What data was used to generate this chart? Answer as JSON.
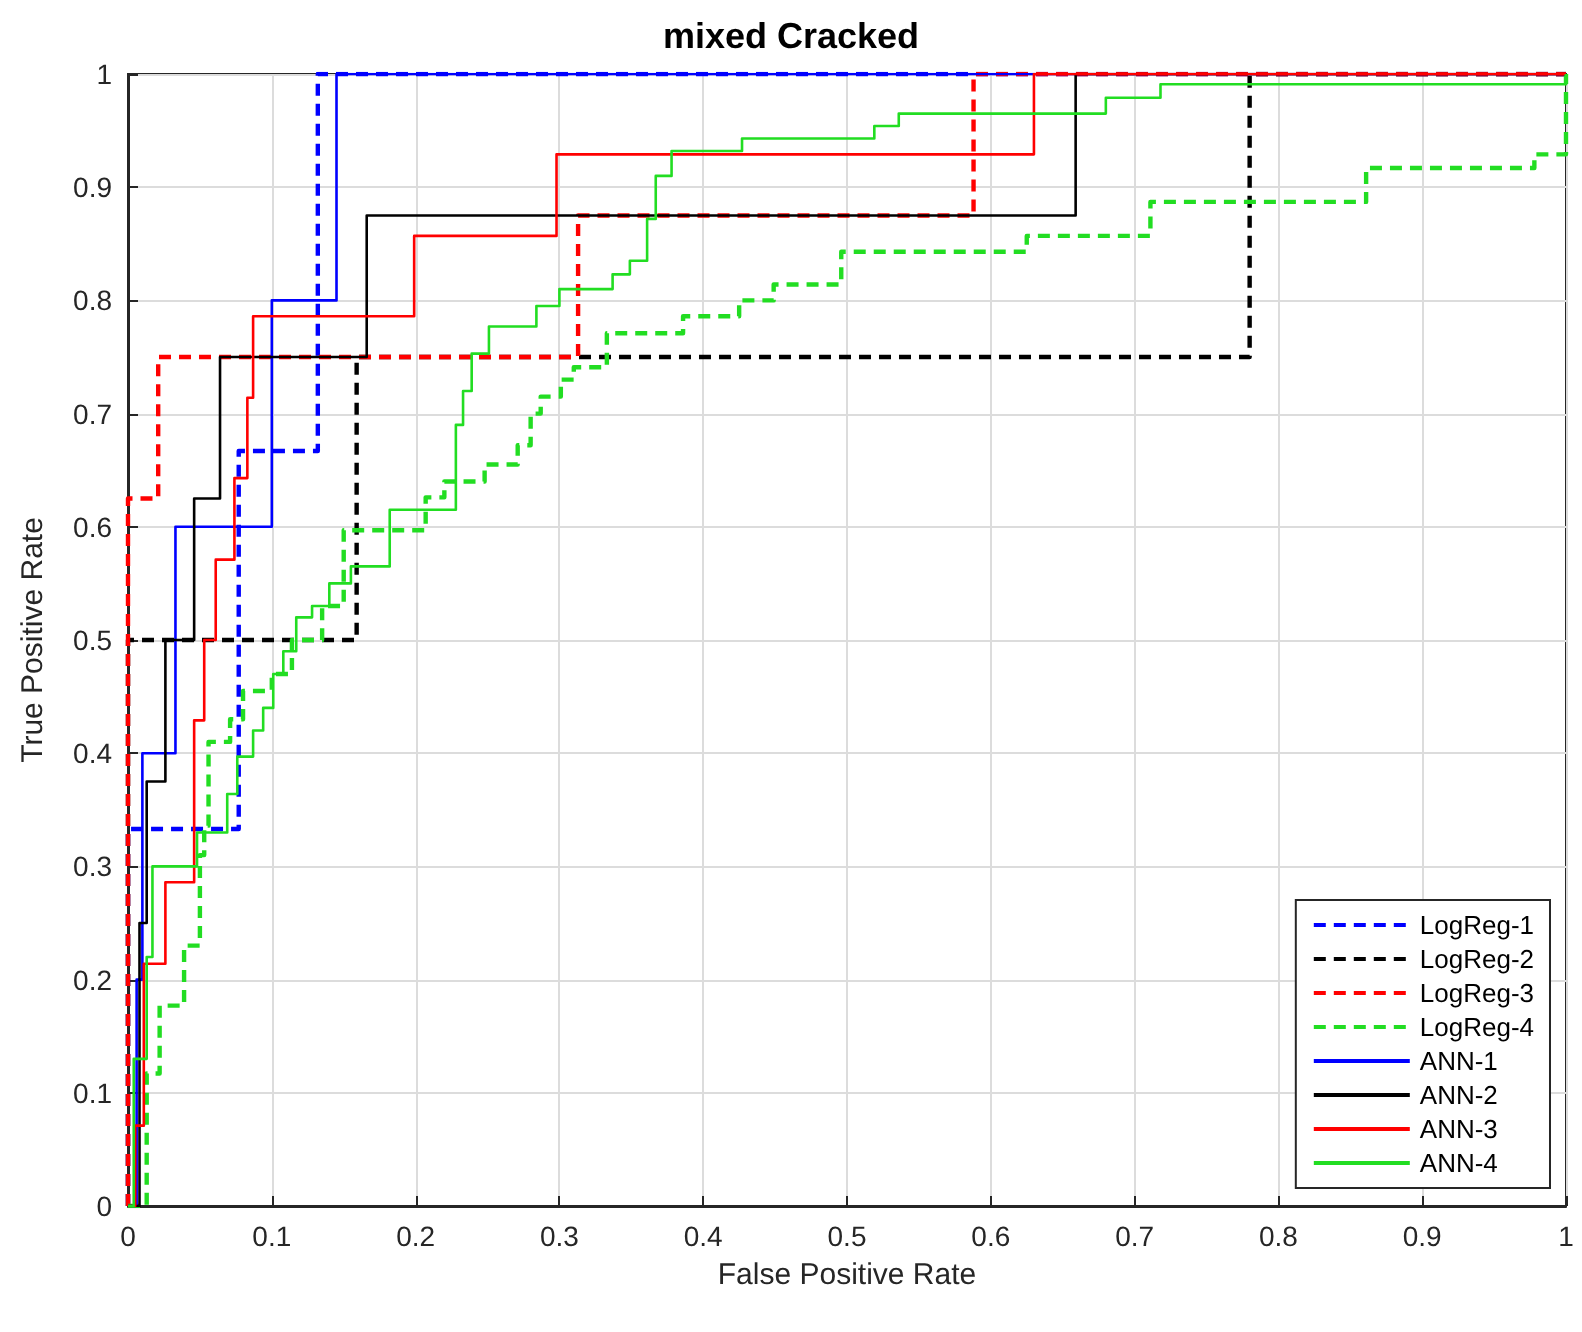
{
  "chart_data": {
    "type": "line",
    "title": "mixed Cracked",
    "xlabel": "False Positive Rate",
    "ylabel": "True Positive Rate",
    "xlim": [
      0,
      1
    ],
    "ylim": [
      0,
      1
    ],
    "xticks": [
      0,
      0.1,
      0.2,
      0.3,
      0.4,
      0.5,
      0.6,
      0.7,
      0.8,
      0.9,
      1
    ],
    "yticks": [
      0,
      0.1,
      0.2,
      0.3,
      0.4,
      0.5,
      0.6,
      0.7,
      0.8,
      0.9,
      1
    ],
    "grid": true,
    "legend": "bottom right",
    "marker": "none",
    "series": [
      {
        "name": "LogReg-1",
        "color": "#0000ff",
        "line_style": "dashed",
        "x": [
          0,
          0,
          0.077,
          0.077,
          0.132,
          0.132,
          1
        ],
        "values": [
          0,
          0.333,
          0.333,
          0.667,
          0.667,
          1,
          1
        ]
      },
      {
        "name": "LogReg-2",
        "color": "#000000",
        "line_style": "dashed",
        "x": [
          0,
          0,
          0.159,
          0.159,
          0.78,
          0.78,
          1
        ],
        "values": [
          0,
          0.5,
          0.5,
          0.75,
          0.75,
          1,
          1
        ]
      },
      {
        "name": "LogReg-3",
        "color": "#ff0000",
        "line_style": "dashed",
        "x": [
          0,
          0,
          0.021,
          0.021,
          0.313,
          0.313,
          0.588,
          0.588,
          1
        ],
        "values": [
          0,
          0.625,
          0.625,
          0.75,
          0.75,
          0.875,
          0.875,
          1,
          1
        ]
      },
      {
        "name": "LogReg-4",
        "color": "#22dd22",
        "line_style": "dashed",
        "x": [
          0,
          0.013,
          0.013,
          0.022,
          0.022,
          0.039,
          0.039,
          0.05,
          0.05,
          0.053,
          0.053,
          0.056,
          0.056,
          0.071,
          0.071,
          0.08,
          0.08,
          0.1,
          0.1,
          0.114,
          0.114,
          0.135,
          0.135,
          0.15,
          0.15,
          0.189,
          0.207,
          0.207,
          0.22,
          0.22,
          0.248,
          0.248,
          0.271,
          0.271,
          0.28,
          0.28,
          0.287,
          0.287,
          0.301,
          0.301,
          0.31,
          0.31,
          0.333,
          0.333,
          0.386,
          0.386,
          0.425,
          0.425,
          0.449,
          0.449,
          0.496,
          0.496,
          0.625,
          0.625,
          0.711,
          0.711,
          0.861,
          0.861,
          0.978,
          0.978,
          1,
          1
        ],
        "values": [
          0,
          0,
          0.117,
          0.117,
          0.177,
          0.177,
          0.23,
          0.23,
          0.31,
          0.31,
          0.336,
          0.336,
          0.41,
          0.41,
          0.43,
          0.43,
          0.455,
          0.455,
          0.47,
          0.47,
          0.5,
          0.5,
          0.53,
          0.53,
          0.597,
          0.597,
          0.597,
          0.626,
          0.626,
          0.64,
          0.64,
          0.655,
          0.655,
          0.672,
          0.672,
          0.7,
          0.7,
          0.715,
          0.715,
          0.73,
          0.73,
          0.741,
          0.741,
          0.771,
          0.771,
          0.786,
          0.786,
          0.8,
          0.8,
          0.814,
          0.814,
          0.843,
          0.843,
          0.857,
          0.857,
          0.887,
          0.887,
          0.917,
          0.917,
          0.929,
          0.929,
          1
        ]
      },
      {
        "name": "ANN-1",
        "color": "#0000ff",
        "line_style": "solid",
        "x": [
          0,
          0.006,
          0.006,
          0.01,
          0.01,
          0.033,
          0.033,
          0.1,
          0.1,
          0.145,
          0.145,
          1
        ],
        "values": [
          0,
          0,
          0.2,
          0.2,
          0.4,
          0.4,
          0.6,
          0.6,
          0.8,
          0.8,
          1,
          1
        ]
      },
      {
        "name": "ANN-2",
        "color": "#000000",
        "line_style": "solid",
        "x": [
          0,
          0.008,
          0.008,
          0.013,
          0.013,
          0.026,
          0.026,
          0.046,
          0.046,
          0.064,
          0.064,
          0.166,
          0.166,
          0.659,
          0.659,
          1
        ],
        "values": [
          0,
          0,
          0.25,
          0.25,
          0.375,
          0.375,
          0.5,
          0.5,
          0.625,
          0.625,
          0.75,
          0.75,
          0.875,
          0.875,
          1,
          1
        ]
      },
      {
        "name": "ANN-3",
        "color": "#ff0000",
        "line_style": "solid",
        "x": [
          0,
          0.005,
          0.005,
          0.011,
          0.011,
          0.026,
          0.026,
          0.046,
          0.046,
          0.053,
          0.053,
          0.061,
          0.061,
          0.074,
          0.074,
          0.083,
          0.083,
          0.087,
          0.087,
          0.199,
          0.199,
          0.298,
          0.298,
          0.63,
          0.63,
          1
        ],
        "values": [
          0,
          0,
          0.071,
          0.071,
          0.214,
          0.214,
          0.286,
          0.286,
          0.429,
          0.429,
          0.5,
          0.5,
          0.571,
          0.571,
          0.643,
          0.643,
          0.714,
          0.714,
          0.786,
          0.786,
          0.857,
          0.857,
          0.929,
          0.929,
          1,
          1
        ]
      },
      {
        "name": "ANN-4",
        "color": "#22dd22",
        "line_style": "solid",
        "x": [
          0,
          0.004,
          0.004,
          0.013,
          0.013,
          0.017,
          0.017,
          0.048,
          0.048,
          0.069,
          0.069,
          0.076,
          0.076,
          0.087,
          0.087,
          0.094,
          0.094,
          0.101,
          0.101,
          0.108,
          0.108,
          0.117,
          0.117,
          0.128,
          0.128,
          0.14,
          0.14,
          0.155,
          0.155,
          0.182,
          0.182,
          0.228,
          0.228,
          0.233,
          0.233,
          0.239,
          0.239,
          0.251,
          0.251,
          0.284,
          0.284,
          0.3,
          0.3,
          0.337,
          0.337,
          0.349,
          0.349,
          0.361,
          0.361,
          0.367,
          0.367,
          0.378,
          0.378,
          0.427,
          0.427,
          0.519,
          0.519,
          0.536,
          0.536,
          0.68,
          0.68,
          0.718,
          0.718,
          1,
          1
        ],
        "values": [
          0,
          0,
          0.13,
          0.13,
          0.22,
          0.22,
          0.3,
          0.3,
          0.33,
          0.33,
          0.364,
          0.364,
          0.397,
          0.397,
          0.42,
          0.42,
          0.44,
          0.44,
          0.47,
          0.47,
          0.49,
          0.49,
          0.52,
          0.52,
          0.53,
          0.53,
          0.55,
          0.55,
          0.565,
          0.565,
          0.615,
          0.615,
          0.69,
          0.69,
          0.72,
          0.72,
          0.753,
          0.753,
          0.777,
          0.777,
          0.795,
          0.795,
          0.81,
          0.81,
          0.823,
          0.823,
          0.835,
          0.835,
          0.872,
          0.872,
          0.91,
          0.91,
          0.932,
          0.932,
          0.943,
          0.943,
          0.954,
          0.954,
          0.965,
          0.965,
          0.979,
          0.979,
          0.991,
          0.991,
          1
        ]
      }
    ]
  }
}
